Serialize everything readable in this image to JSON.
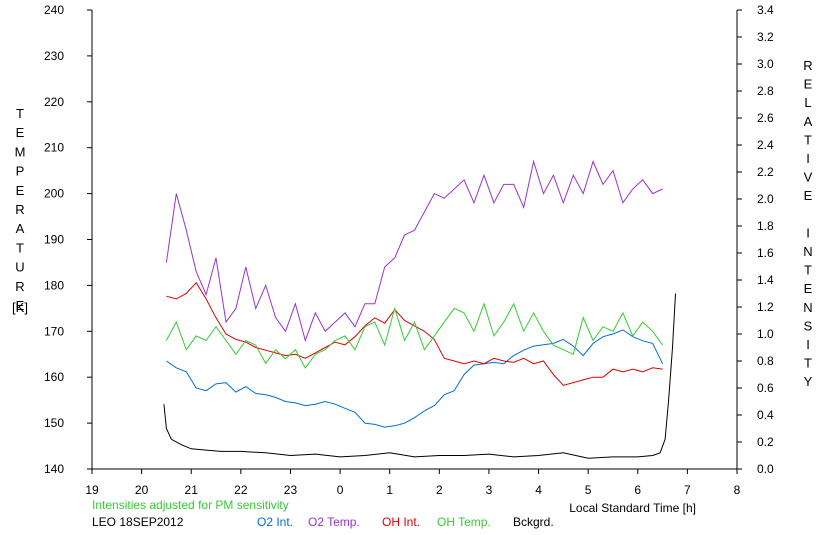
{
  "chart_data": {
    "type": "line",
    "xlabel": "Local Standard Time [h]",
    "ylabel_left": "TEMPERATURE",
    "ylabel_left_unit": "[K]",
    "ylabel_right": "RELATIVE INTENSITY",
    "note": "Intensities adjusted for PM sensitivity",
    "station_date": "LEO 18SEP2012",
    "x_tick_labels": [
      "19",
      "20",
      "21",
      "22",
      "23",
      "0",
      "1",
      "2",
      "3",
      "4",
      "5",
      "6",
      "7",
      "8"
    ],
    "x_range_hours": [
      19,
      32
    ],
    "yleft_ticks": [
      140,
      150,
      160,
      170,
      180,
      190,
      200,
      210,
      220,
      230,
      240
    ],
    "yleft_range": [
      140,
      240
    ],
    "yright_ticks": [
      "0.0",
      "0.2",
      "0.4",
      "0.6",
      "0.8",
      "1.0",
      "1.2",
      "1.4",
      "1.6",
      "1.8",
      "2.0",
      "2.2",
      "2.4",
      "2.6",
      "2.8",
      "3.0",
      "3.2",
      "3.4"
    ],
    "yright_range": [
      0,
      3.4
    ],
    "grid": false,
    "legend_position": "bottom",
    "series": [
      {
        "name": "O2 Int.",
        "axis": "right",
        "color": "#0070d0",
        "x": [
          20.5,
          20.7,
          20.9,
          21.1,
          21.3,
          21.5,
          21.7,
          21.9,
          22.1,
          22.3,
          22.5,
          22.7,
          22.9,
          23.1,
          23.3,
          23.5,
          23.7,
          23.9,
          24.1,
          24.3,
          24.5,
          24.7,
          24.9,
          25.1,
          25.3,
          25.5,
          25.7,
          25.9,
          26.1,
          26.3,
          26.5,
          26.7,
          26.9,
          27.1,
          27.3,
          27.5,
          27.7,
          27.9,
          28.1,
          28.3,
          28.5,
          28.7,
          28.9,
          29.1,
          29.3,
          29.5,
          29.7,
          29.9,
          30.1,
          30.3,
          30.5
        ],
        "y": [
          0.8,
          0.75,
          0.72,
          0.6,
          0.58,
          0.63,
          0.64,
          0.57,
          0.61,
          0.56,
          0.55,
          0.53,
          0.5,
          0.49,
          0.47,
          0.48,
          0.5,
          0.48,
          0.45,
          0.42,
          0.34,
          0.33,
          0.31,
          0.32,
          0.34,
          0.38,
          0.43,
          0.47,
          0.55,
          0.58,
          0.7,
          0.77,
          0.78,
          0.79,
          0.78,
          0.84,
          0.88,
          0.91,
          0.92,
          0.93,
          0.96,
          0.91,
          0.84,
          0.93,
          0.98,
          1.0,
          1.03,
          0.98,
          0.95,
          0.93,
          0.78
        ]
      },
      {
        "name": "O2 Temp.",
        "axis": "left",
        "color": "#9933cc",
        "x": [
          20.5,
          20.7,
          20.9,
          21.1,
          21.3,
          21.5,
          21.7,
          21.9,
          22.1,
          22.3,
          22.5,
          22.7,
          22.9,
          23.1,
          23.3,
          23.5,
          23.7,
          23.9,
          24.1,
          24.3,
          24.5,
          24.7,
          24.9,
          25.1,
          25.3,
          25.5,
          25.7,
          25.9,
          26.1,
          26.3,
          26.5,
          26.7,
          26.9,
          27.1,
          27.3,
          27.5,
          27.7,
          27.9,
          28.1,
          28.3,
          28.5,
          28.7,
          28.9,
          29.1,
          29.3,
          29.5,
          29.7,
          29.9,
          30.1,
          30.3,
          30.5
        ],
        "y": [
          185,
          200,
          192,
          183,
          178,
          186,
          172,
          175,
          184,
          175,
          180,
          173,
          170,
          176,
          168,
          174,
          170,
          172,
          174,
          171,
          176,
          176,
          184,
          186,
          191,
          192,
          196,
          200,
          199,
          201,
          203,
          198,
          204,
          198,
          202,
          202,
          197,
          207,
          200,
          204,
          198,
          204,
          200,
          207,
          202,
          205,
          198,
          201,
          203,
          200,
          201
        ]
      },
      {
        "name": "OH Int.",
        "axis": "right",
        "color": "#dd0000",
        "x": [
          20.5,
          20.7,
          20.9,
          21.1,
          21.3,
          21.5,
          21.7,
          21.9,
          22.1,
          22.3,
          22.5,
          22.7,
          22.9,
          23.1,
          23.3,
          23.5,
          23.7,
          23.9,
          24.1,
          24.3,
          24.5,
          24.7,
          24.9,
          25.1,
          25.3,
          25.5,
          25.7,
          25.9,
          26.1,
          26.3,
          26.5,
          26.7,
          26.9,
          27.1,
          27.3,
          27.5,
          27.7,
          27.9,
          28.1,
          28.3,
          28.5,
          28.7,
          28.9,
          29.1,
          29.3,
          29.5,
          29.7,
          29.9,
          30.1,
          30.3,
          30.5
        ],
        "y": [
          1.28,
          1.26,
          1.3,
          1.38,
          1.26,
          1.12,
          1.0,
          0.96,
          0.94,
          0.9,
          0.88,
          0.86,
          0.84,
          0.85,
          0.82,
          0.86,
          0.9,
          0.94,
          0.92,
          0.98,
          1.06,
          1.12,
          1.08,
          1.18,
          1.1,
          1.06,
          1.02,
          0.96,
          0.82,
          0.8,
          0.78,
          0.8,
          0.78,
          0.82,
          0.8,
          0.79,
          0.82,
          0.78,
          0.8,
          0.7,
          0.62,
          0.64,
          0.66,
          0.68,
          0.68,
          0.74,
          0.72,
          0.74,
          0.72,
          0.75,
          0.74
        ]
      },
      {
        "name": "OH Temp.",
        "axis": "left",
        "color": "#33cc33",
        "x": [
          20.5,
          20.7,
          20.9,
          21.1,
          21.3,
          21.5,
          21.7,
          21.9,
          22.1,
          22.3,
          22.5,
          22.7,
          22.9,
          23.1,
          23.3,
          23.5,
          23.7,
          23.9,
          24.1,
          24.3,
          24.5,
          24.7,
          24.9,
          25.1,
          25.3,
          25.5,
          25.7,
          25.9,
          26.1,
          26.3,
          26.5,
          26.7,
          26.9,
          27.1,
          27.3,
          27.5,
          27.7,
          27.9,
          28.1,
          28.3,
          28.5,
          28.7,
          28.9,
          29.1,
          29.3,
          29.5,
          29.7,
          29.9,
          30.1,
          30.3,
          30.5
        ],
        "y": [
          168,
          172,
          166,
          169,
          168,
          171,
          168,
          165,
          168,
          167,
          163,
          166,
          164,
          166,
          162,
          165,
          166,
          168,
          169,
          166,
          171,
          172,
          167,
          175,
          168,
          172,
          166,
          169,
          172,
          175,
          174,
          170,
          176,
          169,
          172,
          176,
          170,
          174,
          170,
          167,
          166,
          165,
          173,
          168,
          171,
          170,
          174,
          169,
          172,
          170,
          167
        ]
      },
      {
        "name": "Bckgrd.",
        "axis": "right",
        "color": "#000000",
        "x": [
          20.45,
          20.5,
          20.6,
          20.8,
          21.0,
          21.3,
          21.6,
          22.0,
          22.5,
          23.0,
          23.5,
          24.0,
          24.5,
          25.0,
          25.5,
          26.0,
          26.5,
          27.0,
          27.5,
          28.0,
          28.5,
          29.0,
          29.5,
          30.0,
          30.3,
          30.45,
          30.55,
          30.62,
          30.7,
          30.76
        ],
        "y": [
          0.48,
          0.3,
          0.22,
          0.18,
          0.15,
          0.14,
          0.13,
          0.13,
          0.12,
          0.1,
          0.11,
          0.09,
          0.1,
          0.12,
          0.09,
          0.1,
          0.1,
          0.11,
          0.09,
          0.1,
          0.12,
          0.08,
          0.09,
          0.09,
          0.1,
          0.12,
          0.22,
          0.5,
          0.9,
          1.3
        ]
      }
    ]
  }
}
